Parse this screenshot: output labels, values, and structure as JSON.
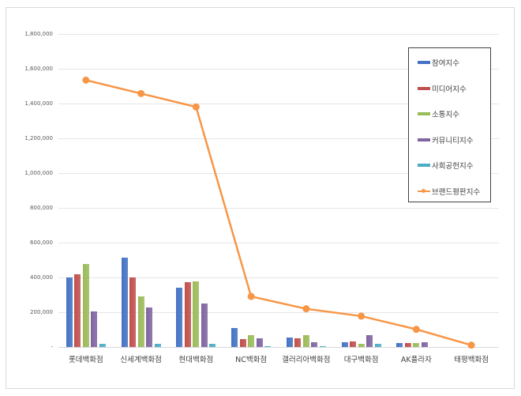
{
  "chart_data": {
    "type": "bar+line",
    "title": "",
    "xlabel": "",
    "ylabel": "",
    "ylim": [
      0,
      1800000
    ],
    "yticks": [
      "-",
      "200,000",
      "400,000",
      "600,000",
      "800,000",
      "1,000,000",
      "1,200,000",
      "1,400,000",
      "1,600,000",
      "1,800,000"
    ],
    "grid": true,
    "legend_position": "right-top (inside)",
    "categories": [
      "롯데백화점",
      "신세계백화점",
      "현대백화점",
      "NC백화점",
      "갤러리아백화점",
      "대구백화점",
      "AK플라자",
      "태평백화점"
    ],
    "series": [
      {
        "name": "참여지수",
        "type": "bar",
        "color": "#4472c4",
        "values": [
          403000,
          515000,
          343000,
          109000,
          58000,
          27000,
          23000,
          2500
        ]
      },
      {
        "name": "미디어지수",
        "type": "bar",
        "color": "#c0504d",
        "values": [
          418000,
          400000,
          373000,
          48000,
          53000,
          35000,
          25000,
          500
        ]
      },
      {
        "name": "소통지수",
        "type": "bar",
        "color": "#9bbb59",
        "values": [
          480000,
          292000,
          379000,
          70000,
          68000,
          21000,
          24000,
          500
        ]
      },
      {
        "name": "커뮤니티지수",
        "type": "bar",
        "color": "#8064a2",
        "values": [
          208000,
          230000,
          253000,
          53000,
          29000,
          70000,
          27000,
          2000
        ]
      },
      {
        "name": "사회공헌지수",
        "type": "bar",
        "color": "#4bacc6",
        "values": [
          21000,
          20000,
          18000,
          5000,
          6000,
          19000,
          1500,
          500
        ]
      },
      {
        "name": "브랜드평판지수",
        "type": "line",
        "color": "#f79646",
        "values": [
          1536000,
          1459000,
          1382000,
          292000,
          221000,
          179000,
          103000,
          12000
        ]
      }
    ]
  }
}
